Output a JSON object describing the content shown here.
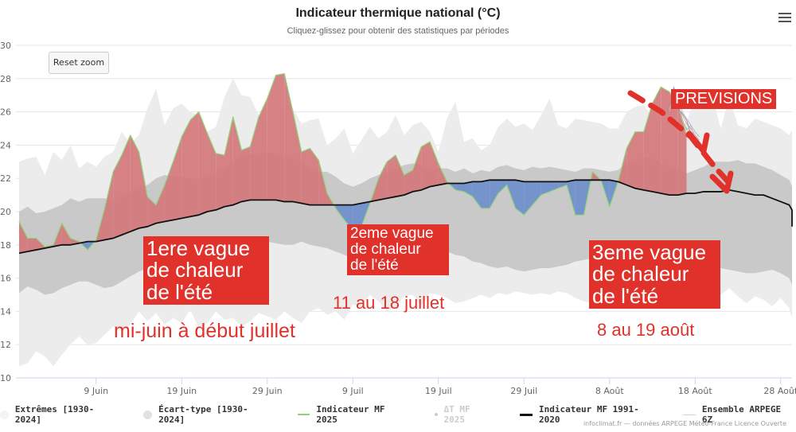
{
  "header": {
    "title": "Indicateur thermique national (°C)",
    "subtitle": "Cliquez-glissez pour obtenir des statistiques par périodes",
    "menu_icon": "hamburger-menu-icon",
    "reset_zoom_label": "Reset zoom"
  },
  "legend": [
    {
      "label": "Extrêmes [1930-2024]",
      "symbol": "dot",
      "color": "#f2f2f2",
      "enabled": true
    },
    {
      "label": "Écart-type [1930-2024]",
      "symbol": "dot",
      "color": "#e0e0e0",
      "enabled": true
    },
    {
      "label": "Indicateur MF 2025",
      "symbol": "line",
      "color": "#8fd47a",
      "enabled": true
    },
    {
      "label": "ΔT MF 2025",
      "symbol": "small-dot",
      "color": "#cccccc",
      "enabled": false
    },
    {
      "label": "Indicateur MF 1991-2020",
      "symbol": "line",
      "color": "#111111",
      "enabled": true
    },
    {
      "label": "Ensemble ARPEGE 6Z",
      "symbol": "line",
      "color": "#c8d4ea",
      "enabled": true
    }
  ],
  "credits": "infoclimat.fr — données ARPEGE Météo-France Licence Ouverte",
  "annotations": {
    "wave1_box": [
      "1ere vague",
      "de chaleur",
      "de l'été"
    ],
    "wave1_dates": "mi-juin à début juillet",
    "wave2_box": [
      "2eme vague",
      "de chaleur",
      "de l'été"
    ],
    "wave2_dates": "11 au 18 juillet",
    "wave3_box": [
      "3eme vague",
      "de chaleur",
      "de l'été"
    ],
    "wave3_dates": "8 au 19 août",
    "forecast_label": "PREVISIONS"
  },
  "colors": {
    "hot_fill": "#d4787c",
    "cold_fill": "#6f8fcc",
    "extremes": "#ececec",
    "stddev": "#c9c9c9",
    "annotation_red": "#e0312b"
  },
  "chart_data": {
    "type": "area",
    "title": "Indicateur thermique national (°C)",
    "subtitle": "Cliquez-glissez pour obtenir des statistiques par périodes",
    "xlabel": "",
    "ylabel": "",
    "ylim": [
      10,
      30
    ],
    "yticks": [
      10,
      12,
      14,
      16,
      18,
      20,
      22,
      24,
      26,
      28,
      30
    ],
    "x_start": "31 Mai",
    "x_end": "1 Sept",
    "xticks": [
      {
        "label": "9 Juin",
        "day": 9
      },
      {
        "label": "19 Juin",
        "day": 19
      },
      {
        "label": "29 Juin",
        "day": 29
      },
      {
        "label": "9 Juil",
        "day": 39
      },
      {
        "label": "19 Juil",
        "day": 49
      },
      {
        "label": "29 Juil",
        "day": 59
      },
      {
        "label": "8 Août",
        "day": 69
      },
      {
        "label": "18 Août",
        "day": 79
      },
      {
        "label": "28 Août",
        "day": 89
      }
    ],
    "grid": true,
    "legend_position": "bottom",
    "series": [
      {
        "name": "Indicateur MF 1991-2020",
        "values": [
          17.5,
          17.6,
          17.7,
          17.8,
          17.9,
          18.0,
          18.0,
          18.1,
          18.2,
          18.2,
          18.3,
          18.4,
          18.6,
          18.8,
          19.0,
          19.1,
          19.3,
          19.4,
          19.5,
          19.6,
          19.7,
          19.8,
          20.0,
          20.1,
          20.3,
          20.4,
          20.6,
          20.7,
          20.7,
          20.7,
          20.7,
          20.6,
          20.6,
          20.5,
          20.4,
          20.4,
          20.4,
          20.4,
          20.4,
          20.4,
          20.5,
          20.6,
          20.7,
          20.8,
          20.9,
          21.0,
          21.2,
          21.3,
          21.5,
          21.6,
          21.7,
          21.7,
          21.7,
          21.8,
          21.8,
          21.9,
          21.9,
          21.9,
          21.9,
          21.8,
          21.8,
          21.8,
          21.8,
          21.8,
          21.8,
          21.9,
          21.9,
          21.9,
          21.9,
          21.9,
          21.8,
          21.6,
          21.4,
          21.3,
          21.2,
          21.1,
          21.0,
          21.0,
          21.1,
          21.1,
          21.2,
          21.2,
          21.2,
          21.3,
          21.2,
          21.1,
          21.0,
          21.0,
          20.8,
          20.6,
          20.4,
          20.1,
          19.9,
          19.6,
          19.3,
          19.1
        ]
      },
      {
        "name": "Indicateur MF 2025",
        "values": [
          19.4,
          18.4,
          18.4,
          17.9,
          18.0,
          19.3,
          18.4,
          18.2,
          17.7,
          18.3,
          20.2,
          22.4,
          23.4,
          24.6,
          23.6,
          20.9,
          20.4,
          21.6,
          23.0,
          24.5,
          25.5,
          26.0,
          24.7,
          23.5,
          23.4,
          25.7,
          23.7,
          23.9,
          25.7,
          26.8,
          28.2,
          28.3,
          26.0,
          23.6,
          23.8,
          23.1,
          21.1,
          20.2,
          19.5,
          18.9,
          19.1,
          20.5,
          22.0,
          23.0,
          23.4,
          22.2,
          22.5,
          23.9,
          24.2,
          22.9,
          21.8,
          21.3,
          21.2,
          20.9,
          20.2,
          20.2,
          21.1,
          21.6,
          20.2,
          19.8,
          20.4,
          21.0,
          21.2,
          21.4,
          21.6,
          19.8,
          19.8,
          22.4,
          21.9,
          20.3,
          21.8,
          23.8,
          24.8,
          24.8,
          26.5,
          27.5,
          27.2,
          26.4,
          24.6
        ]
      },
      {
        "name": "Extrêmes max [1930-2024]",
        "values": [
          23.0,
          23.2,
          23.3,
          22.2,
          23.6,
          23.1,
          24.0,
          22.6,
          23.0,
          22.7,
          23.3,
          23.6,
          24.8,
          24.1,
          24.6,
          26.2,
          27.4,
          25.2,
          26.2,
          26.5,
          26.0,
          25.8,
          24.8,
          25.1,
          26.9,
          28.0,
          27.0,
          26.9,
          25.8,
          25.4,
          26.5,
          26.6,
          26.2,
          25.3,
          25.5,
          25.6,
          24.0,
          24.4,
          25.0,
          23.5,
          24.3,
          25.1,
          24.4,
          24.8,
          25.8,
          24.6,
          25.2,
          25.4,
          24.8,
          23.6,
          25.6,
          26.6,
          24.2,
          24.4,
          23.7,
          24.0,
          25.1,
          25.6,
          25.1,
          25.3,
          24.9,
          25.8,
          26.8,
          25.2,
          25.0,
          25.6,
          25.5,
          25.4,
          25.3,
          25.0,
          25.0,
          26.0,
          26.3,
          26.4,
          25.7,
          24.8,
          24.0,
          25.0,
          25.4,
          26.8,
          26.5,
          26.9,
          25.0,
          26.9,
          25.2,
          25.0,
          25.6,
          25.4,
          25.2,
          25.0,
          24.6,
          24.9,
          24.3,
          24.0,
          23.4,
          23.0
        ]
      },
      {
        "name": "Écart-type max [1930-2024]",
        "values": [
          20.0,
          20.3,
          19.9,
          20.0,
          20.2,
          20.4,
          20.8,
          20.6,
          20.8,
          20.8,
          20.8,
          20.7,
          21.0,
          21.2,
          21.4,
          21.6,
          22.0,
          22.2,
          22.1,
          22.1,
          22.0,
          22.0,
          22.1,
          22.3,
          22.6,
          23.0,
          23.4,
          23.5,
          23.4,
          23.6,
          23.5,
          23.4,
          23.3,
          23.0,
          22.6,
          22.4,
          22.4,
          22.1,
          21.7,
          21.5,
          21.7,
          22.0,
          22.2,
          22.4,
          22.6,
          22.8,
          22.9,
          22.8,
          22.5,
          22.6,
          22.6,
          22.4,
          22.6,
          22.3,
          22.5,
          22.4,
          22.7,
          22.8,
          22.6,
          22.5,
          22.7,
          22.6,
          22.7,
          22.6,
          22.5,
          22.4,
          22.6,
          22.6,
          22.5,
          22.4,
          22.5,
          22.9,
          23.0,
          23.3,
          23.2,
          22.9,
          22.7,
          22.6,
          22.3,
          22.5,
          22.7,
          23.0,
          23.0,
          23.0,
          23.1,
          22.9,
          22.9,
          22.7,
          22.5,
          22.2,
          21.9,
          21.5,
          21.3,
          21.0,
          20.5,
          20.2
        ]
      },
      {
        "name": "Écart-type min [1930-2024]",
        "values": [
          15.1,
          15.5,
          15.3,
          15.0,
          15.1,
          15.4,
          15.6,
          15.8,
          15.8,
          15.6,
          15.4,
          15.5,
          15.8,
          16.1,
          16.4,
          16.6,
          16.7,
          16.8,
          16.9,
          17.1,
          17.2,
          17.3,
          17.3,
          17.4,
          17.6,
          17.8,
          18.1,
          18.0,
          18.1,
          18.2,
          18.1,
          18.0,
          18.0,
          18.2,
          18.0,
          17.9,
          17.8,
          17.6,
          17.4,
          17.2,
          17.3,
          17.4,
          17.5,
          17.6,
          17.4,
          17.5,
          17.6,
          17.6,
          17.6,
          17.6,
          17.6,
          17.4,
          17.3,
          17.0,
          16.9,
          16.7,
          16.6,
          16.7,
          16.5,
          16.4,
          16.5,
          16.6,
          16.6,
          16.7,
          16.8,
          17.0,
          17.1,
          17.2,
          17.2,
          17.0,
          16.8,
          16.9,
          17.0,
          17.1,
          17.0,
          16.9,
          17.0,
          16.9,
          16.8,
          16.8,
          16.6,
          16.7,
          16.6,
          16.5,
          16.4,
          16.3,
          16.3,
          16.4,
          16.5,
          16.3,
          16.0,
          15.6,
          15.3,
          15.0,
          14.7,
          14.4
        ]
      },
      {
        "name": "Extrêmes min [1930-2024]",
        "values": [
          10.7,
          10.9,
          11.6,
          11.3,
          10.7,
          11.4,
          12.0,
          12.5,
          12.0,
          12.1,
          12.6,
          13.1,
          12.9,
          13.2,
          14.0,
          13.4,
          13.9,
          13.2,
          13.6,
          13.3,
          14.1,
          13.0,
          13.3,
          14.0,
          13.5,
          13.6,
          13.1,
          13.4,
          13.9,
          13.7,
          13.5,
          14.0,
          13.6,
          13.3,
          14.0,
          14.2,
          13.8,
          14.0,
          13.5,
          14.4,
          14.3,
          15.0,
          14.6,
          14.0,
          14.3,
          14.9,
          15.0,
          14.3,
          15.1,
          15.0,
          14.8,
          14.5,
          14.6,
          14.8,
          15.0,
          14.8,
          15.1,
          15.0,
          15.2,
          15.1,
          15.0,
          15.1,
          15.0,
          15.2,
          15.1,
          14.8,
          14.6,
          14.5,
          15.0,
          15.3,
          15.1,
          15.5,
          15.6,
          15.3,
          14.6,
          15.2,
          15.4,
          15.1,
          15.3,
          15.0,
          15.3,
          14.8,
          15.0,
          15.4,
          14.9,
          14.5,
          14.9,
          14.7,
          14.3,
          14.8,
          14.2,
          13.6,
          13.0,
          13.4,
          12.6,
          13.0
        ]
      },
      {
        "name": "Ensemble ARPEGE 6Z",
        "start_day": 76,
        "members": [
          [
            26.2,
            27.5,
            26.8,
            26.0,
            25.6,
            25.2,
            24.8,
            24.5
          ],
          [
            26.4,
            27.3,
            26.4,
            25.8,
            25.3,
            25.0,
            24.6,
            24.3
          ],
          [
            26.0,
            27.2,
            26.6,
            25.5,
            25.0,
            24.8,
            24.4,
            24.0
          ],
          [
            26.3,
            27.4,
            26.2,
            25.9,
            25.5,
            24.7,
            24.5,
            24.2
          ],
          [
            26.1,
            27.1,
            26.5,
            25.6,
            24.9,
            25.2,
            24.3,
            24.1
          ]
        ]
      }
    ]
  }
}
